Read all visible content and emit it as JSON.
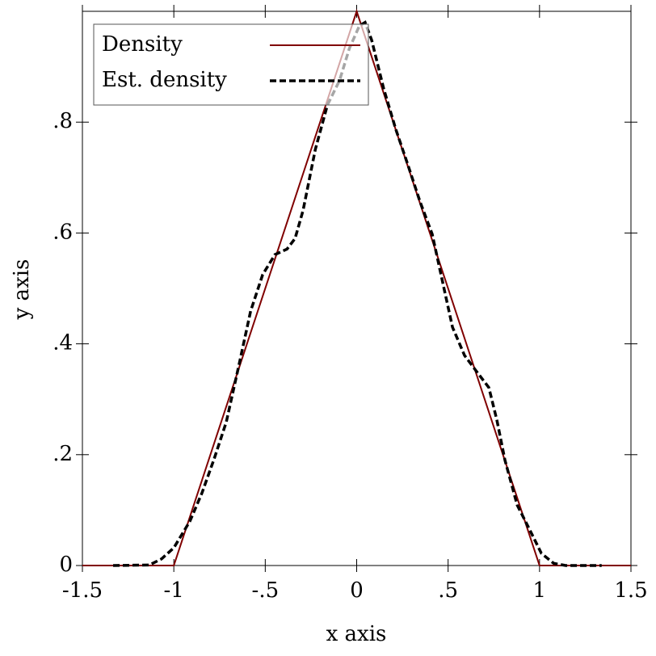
{
  "chart_data": {
    "type": "line",
    "xlabel": "x axis",
    "ylabel": "y axis",
    "xlim": [
      -1.5,
      1.5
    ],
    "ylim": [
      0,
      1
    ],
    "xticks": [
      -1.5,
      -1,
      {
        "value": -0.5,
        "label": "-.5"
      },
      0,
      {
        "value": 0.5,
        "label": ".5"
      },
      1,
      1.5
    ],
    "yticks": [
      0,
      {
        "value": 0.2,
        "label": ".2"
      },
      {
        "value": 0.4,
        "label": ".4"
      },
      {
        "value": 0.6,
        "label": ".6"
      },
      {
        "value": 0.8,
        "label": ".8"
      }
    ],
    "legend": "top-left",
    "series": [
      {
        "name": "Density",
        "color": "#800000",
        "dash": false,
        "x": [
          -1.5,
          -1,
          0,
          1,
          1.5
        ],
        "values": [
          0,
          0,
          1,
          0,
          0
        ]
      },
      {
        "name": "Est. density",
        "color": "#000000",
        "dash": true,
        "x": [
          -1.332,
          -1.133,
          -1.067,
          -1.0,
          -0.912,
          -0.846,
          -0.78,
          -0.713,
          -0.647,
          -0.58,
          -0.514,
          -0.447,
          -0.381,
          -0.337,
          -0.293,
          -0.226,
          -0.16,
          -0.094,
          -0.04,
          0.015,
          0.046,
          0.082,
          0.148,
          0.214,
          0.281,
          0.347,
          0.413,
          0.471,
          0.524,
          0.59,
          0.656,
          0.723,
          0.767,
          0.811,
          0.878,
          0.944,
          1.01,
          1.077,
          1.143,
          1.34
        ],
        "values": [
          0,
          0.001,
          0.012,
          0.032,
          0.08,
          0.131,
          0.192,
          0.259,
          0.357,
          0.459,
          0.525,
          0.561,
          0.571,
          0.59,
          0.641,
          0.751,
          0.831,
          0.875,
          0.933,
          0.974,
          0.98,
          0.948,
          0.86,
          0.787,
          0.722,
          0.656,
          0.598,
          0.51,
          0.43,
          0.379,
          0.35,
          0.321,
          0.262,
          0.19,
          0.109,
          0.066,
          0.022,
          0.004,
          0,
          0
        ]
      }
    ]
  }
}
